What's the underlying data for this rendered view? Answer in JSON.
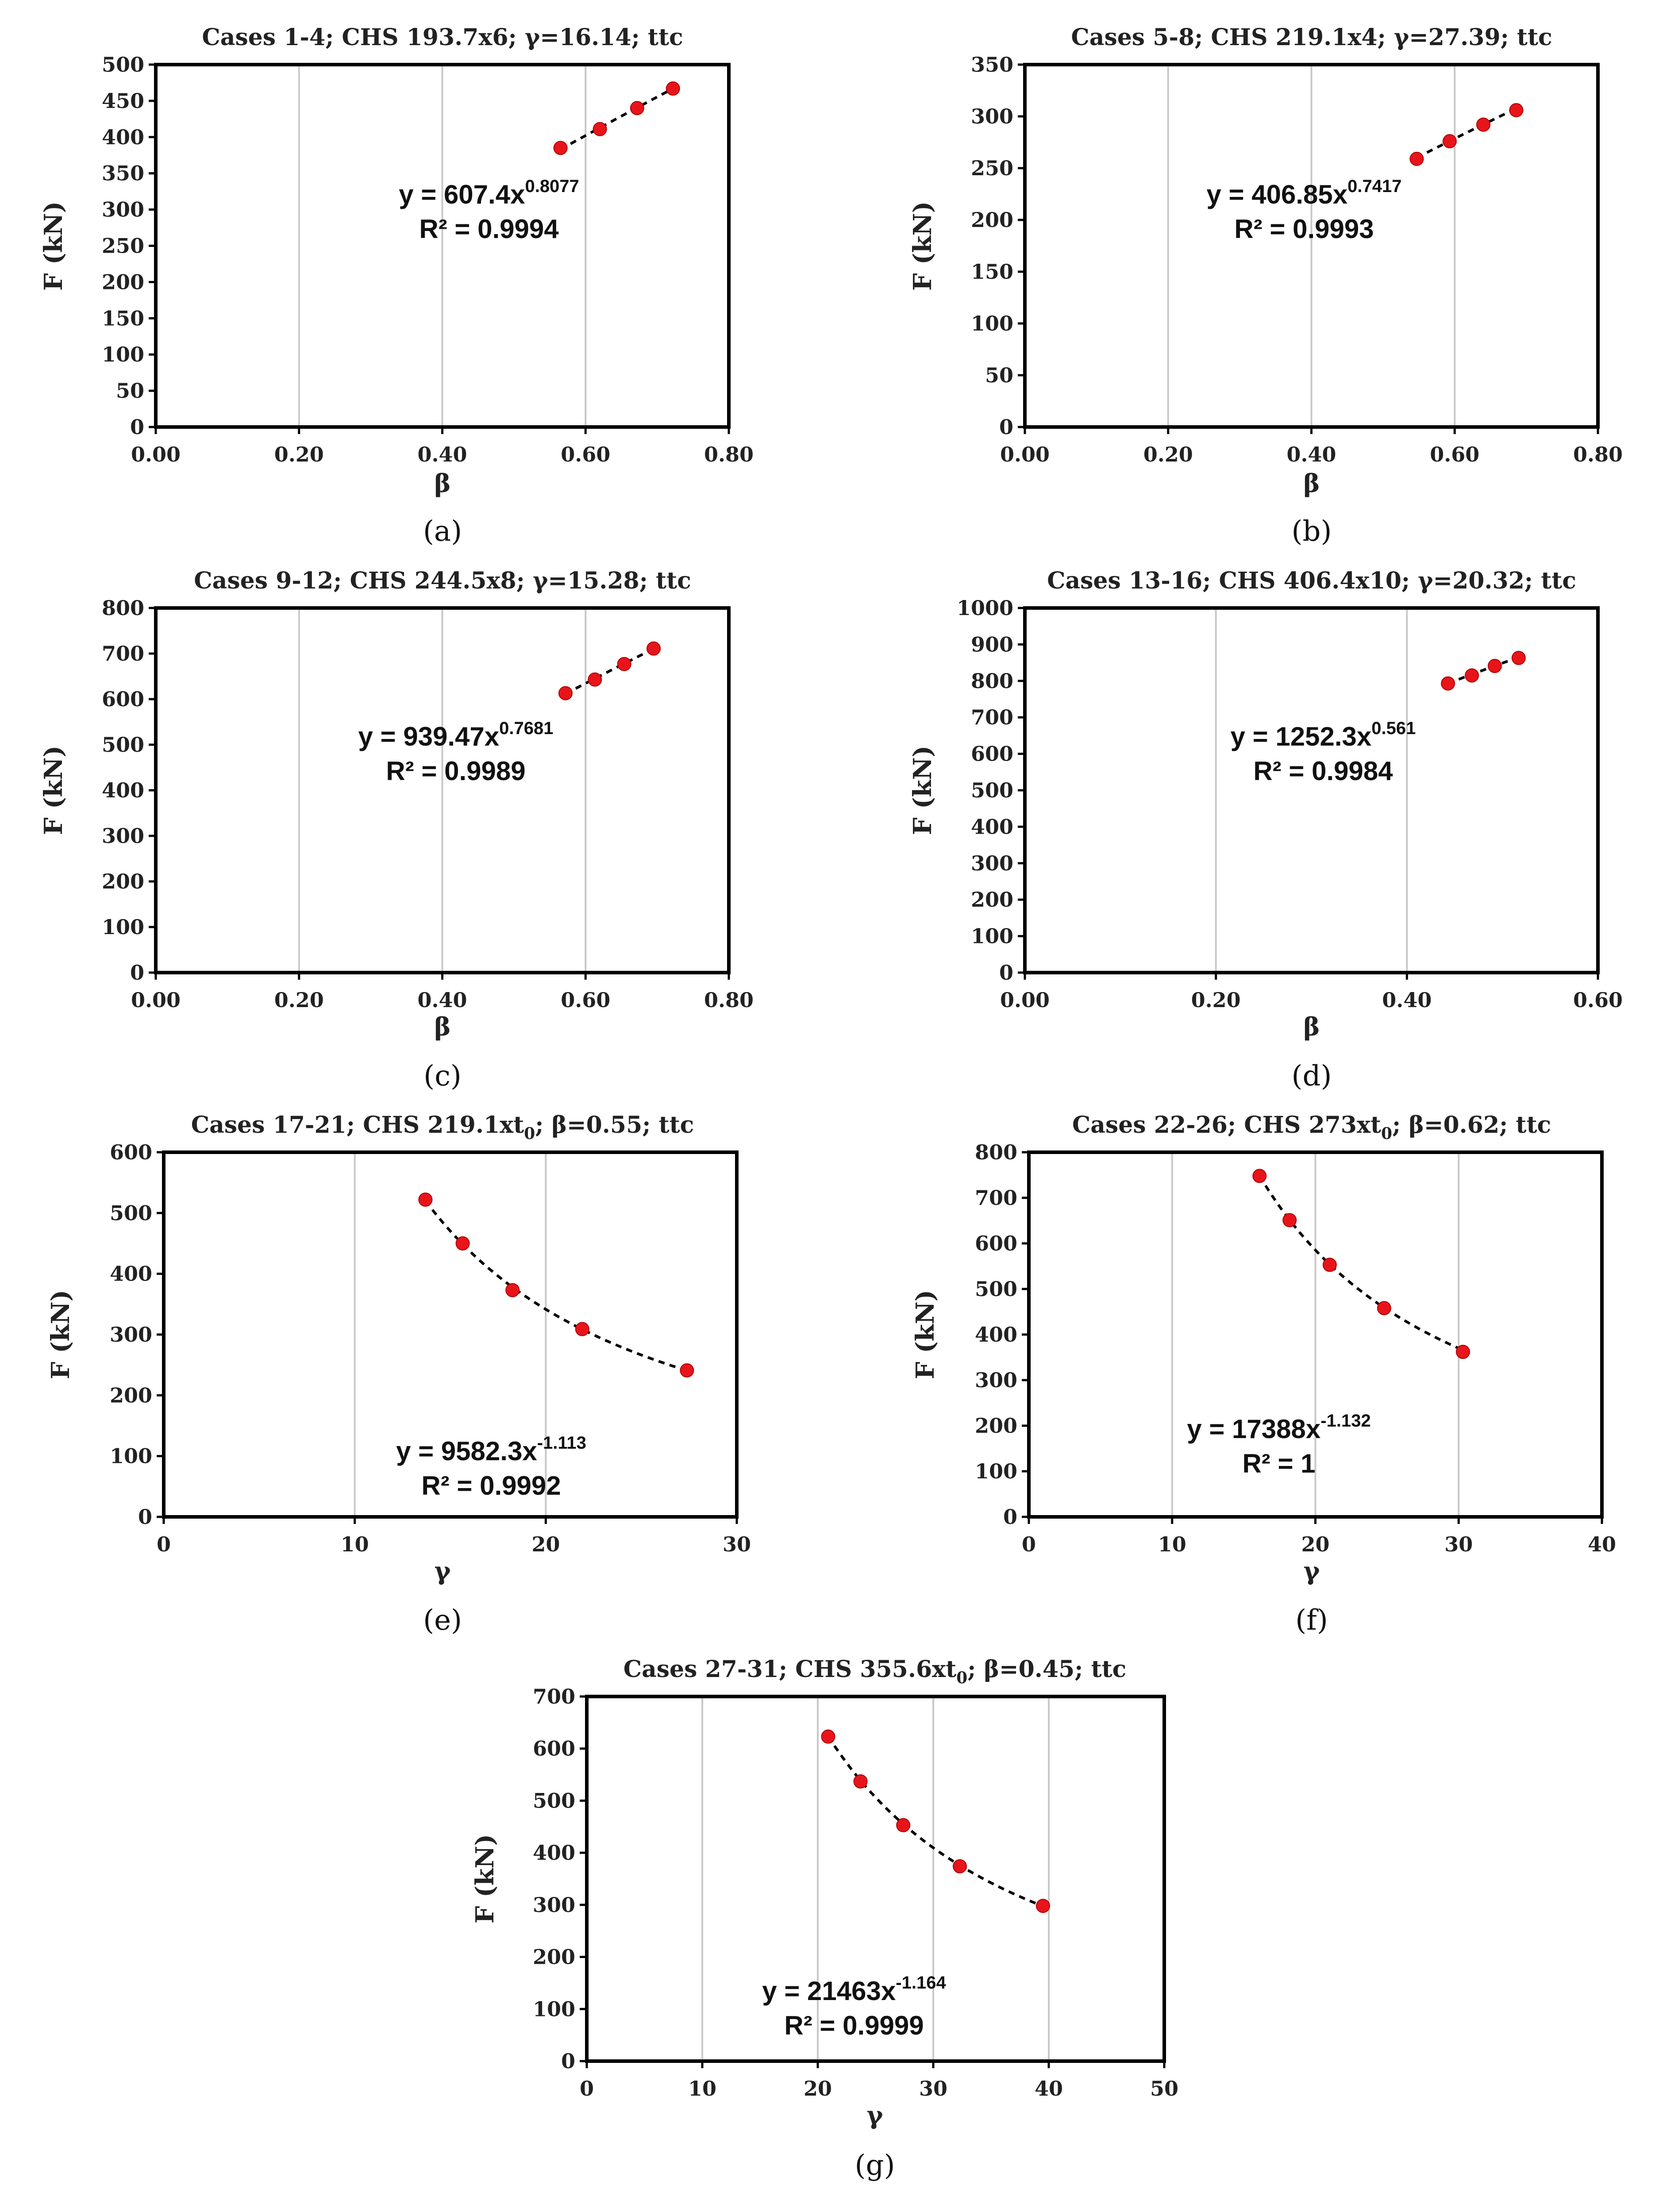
{
  "chart_data": [
    {
      "id": "a",
      "type": "scatter",
      "title": "Cases 1-4; CHS 193.7x6; γ=16.14; ttc",
      "xlabel": "β",
      "ylabel": "F (kN)",
      "xlim": [
        0,
        0.8
      ],
      "ylim": [
        0,
        500
      ],
      "xticks": [
        0,
        0.2,
        0.4,
        0.6,
        0.8
      ],
      "xtick_labels": [
        "0.00",
        "0.20",
        "0.40",
        "0.60",
        "0.80"
      ],
      "yticks": [
        0,
        50,
        100,
        150,
        200,
        250,
        300,
        350,
        400,
        450,
        500
      ],
      "x": [
        0.565,
        0.62,
        0.672,
        0.722
      ],
      "y": [
        385,
        411,
        440,
        467
      ],
      "trend": {
        "type": "power",
        "a": 607.4,
        "b": 0.8077,
        "domain": [
          0.565,
          0.722
        ]
      },
      "equation": {
        "prefix": "y = 607.4x",
        "exponent": "0.8077",
        "r2": "R² = 0.9994"
      },
      "caption": "(a)"
    },
    {
      "id": "b",
      "type": "scatter",
      "title": "Cases 5-8; CHS 219.1x4; γ=27.39; ttc",
      "xlabel": "β",
      "ylabel": "F (kN)",
      "xlim": [
        0,
        0.8
      ],
      "ylim": [
        0,
        350
      ],
      "xticks": [
        0,
        0.2,
        0.4,
        0.6,
        0.8
      ],
      "xtick_labels": [
        "0.00",
        "0.20",
        "0.40",
        "0.60",
        "0.80"
      ],
      "yticks": [
        0,
        50,
        100,
        150,
        200,
        250,
        300,
        350
      ],
      "x": [
        0.547,
        0.593,
        0.64,
        0.686
      ],
      "y": [
        259,
        276,
        292,
        306
      ],
      "trend": {
        "type": "power",
        "a": 406.85,
        "b": 0.7417,
        "domain": [
          0.547,
          0.686
        ]
      },
      "equation": {
        "prefix": "y = 406.85x",
        "exponent": "0.7417",
        "r2": "R² = 0.9993"
      },
      "caption": "(b)"
    },
    {
      "id": "c",
      "type": "scatter",
      "title": "Cases 9-12; CHS 244.5x8; γ=15.28; ttc",
      "xlabel": "β",
      "ylabel": "F (kN)",
      "xlim": [
        0,
        0.8
      ],
      "ylim": [
        0,
        800
      ],
      "xticks": [
        0,
        0.2,
        0.4,
        0.6,
        0.8
      ],
      "xtick_labels": [
        "0.00",
        "0.20",
        "0.40",
        "0.60",
        "0.80"
      ],
      "yticks": [
        0,
        100,
        200,
        300,
        400,
        500,
        600,
        700,
        800
      ],
      "x": [
        0.572,
        0.613,
        0.654,
        0.695
      ],
      "y": [
        613,
        643,
        677,
        711
      ],
      "trend": {
        "type": "power",
        "a": 939.47,
        "b": 0.7681,
        "domain": [
          0.572,
          0.695
        ]
      },
      "equation": {
        "prefix": "y = 939.47x",
        "exponent": "0.7681",
        "r2": "R² = 0.9989"
      },
      "caption": "(c)"
    },
    {
      "id": "d",
      "type": "scatter",
      "title": "Cases 13-16; CHS 406.4x10; γ=20.32; ttc",
      "xlabel": "β",
      "ylabel": "F (kN)",
      "xlim": [
        0,
        0.6
      ],
      "ylim": [
        0,
        1000
      ],
      "xticks": [
        0,
        0.2,
        0.4,
        0.6
      ],
      "xtick_labels": [
        "0.00",
        "0.20",
        "0.40",
        "0.60"
      ],
      "yticks": [
        0,
        100,
        200,
        300,
        400,
        500,
        600,
        700,
        800,
        900,
        1000
      ],
      "x": [
        0.443,
        0.468,
        0.492,
        0.517
      ],
      "y": [
        793,
        815,
        841,
        863
      ],
      "trend": {
        "type": "power",
        "a": 1252.3,
        "b": 0.561,
        "domain": [
          0.443,
          0.517
        ]
      },
      "equation": {
        "prefix": "y = 1252.3x",
        "exponent": "0.561",
        "r2": "R² = 0.9984"
      },
      "caption": "(d)"
    },
    {
      "id": "e",
      "type": "scatter",
      "title": "Cases 17-21; CHS 219.1xt",
      "title_sub": "0",
      "title_tail": "; β=0.55; ttc",
      "xlabel": "γ",
      "ylabel": "F (kN)",
      "xlim": [
        0,
        30
      ],
      "ylim": [
        0,
        600
      ],
      "xticks": [
        0,
        10,
        20,
        30
      ],
      "xtick_labels": [
        "0",
        "10",
        "20",
        "30"
      ],
      "yticks": [
        0,
        100,
        200,
        300,
        400,
        500,
        600
      ],
      "x": [
        13.7,
        15.65,
        18.26,
        21.91,
        27.39
      ],
      "y": [
        522,
        450,
        373,
        309,
        241
      ],
      "trend": {
        "type": "power",
        "a": 9582.3,
        "b": -1.113,
        "domain": [
          13.7,
          27.39
        ]
      },
      "equation": {
        "prefix": "y = 9582.3x",
        "exponent": "-1.113",
        "r2": "R² = 0.9992"
      },
      "caption": "(e)"
    },
    {
      "id": "f",
      "type": "scatter",
      "title": "Cases 22-26; CHS 273xt",
      "title_sub": "0",
      "title_tail": "; β=0.62; ttc",
      "xlabel": "γ",
      "ylabel": "F (kN)",
      "xlim": [
        0,
        40
      ],
      "ylim": [
        0,
        800
      ],
      "xticks": [
        0,
        10,
        20,
        30,
        40
      ],
      "xtick_labels": [
        "0",
        "10",
        "20",
        "30",
        "40"
      ],
      "yticks": [
        0,
        100,
        200,
        300,
        400,
        500,
        600,
        700,
        800
      ],
      "x": [
        16.1,
        18.2,
        21.0,
        24.8,
        30.3
      ],
      "y": [
        748,
        651,
        553,
        458,
        362
      ],
      "trend": {
        "type": "power",
        "a": 17388,
        "b": -1.132,
        "domain": [
          16.1,
          30.3
        ]
      },
      "equation": {
        "prefix": "y = 17388x",
        "exponent": "-1.132",
        "r2": "R² = 1"
      },
      "caption": "(f)"
    },
    {
      "id": "g",
      "type": "scatter",
      "title": "Cases 27-31; CHS 355.6xt",
      "title_sub": "0",
      "title_tail": "; β=0.45; ttc",
      "xlabel": "γ",
      "ylabel": "F (kN)",
      "xlim": [
        0,
        50
      ],
      "ylim": [
        0,
        700
      ],
      "xticks": [
        0,
        10,
        20,
        30,
        40,
        50
      ],
      "xtick_labels": [
        "0",
        "10",
        "20",
        "30",
        "40",
        "50"
      ],
      "yticks": [
        0,
        100,
        200,
        300,
        400,
        500,
        600,
        700
      ],
      "x": [
        20.9,
        23.7,
        27.4,
        32.3,
        39.5
      ],
      "y": [
        623,
        537,
        453,
        374,
        298
      ],
      "trend": {
        "type": "power",
        "a": 21463,
        "b": -1.164,
        "domain": [
          20.9,
          39.5
        ]
      },
      "equation": {
        "prefix": "y = 21463x",
        "exponent": "-1.164",
        "r2": "R² = 0.9999"
      },
      "caption": "(g)"
    }
  ],
  "colors": {
    "marker": "#e8141b",
    "axis": "#000000",
    "grid": "#c8c8c8",
    "trend": "#000000"
  }
}
